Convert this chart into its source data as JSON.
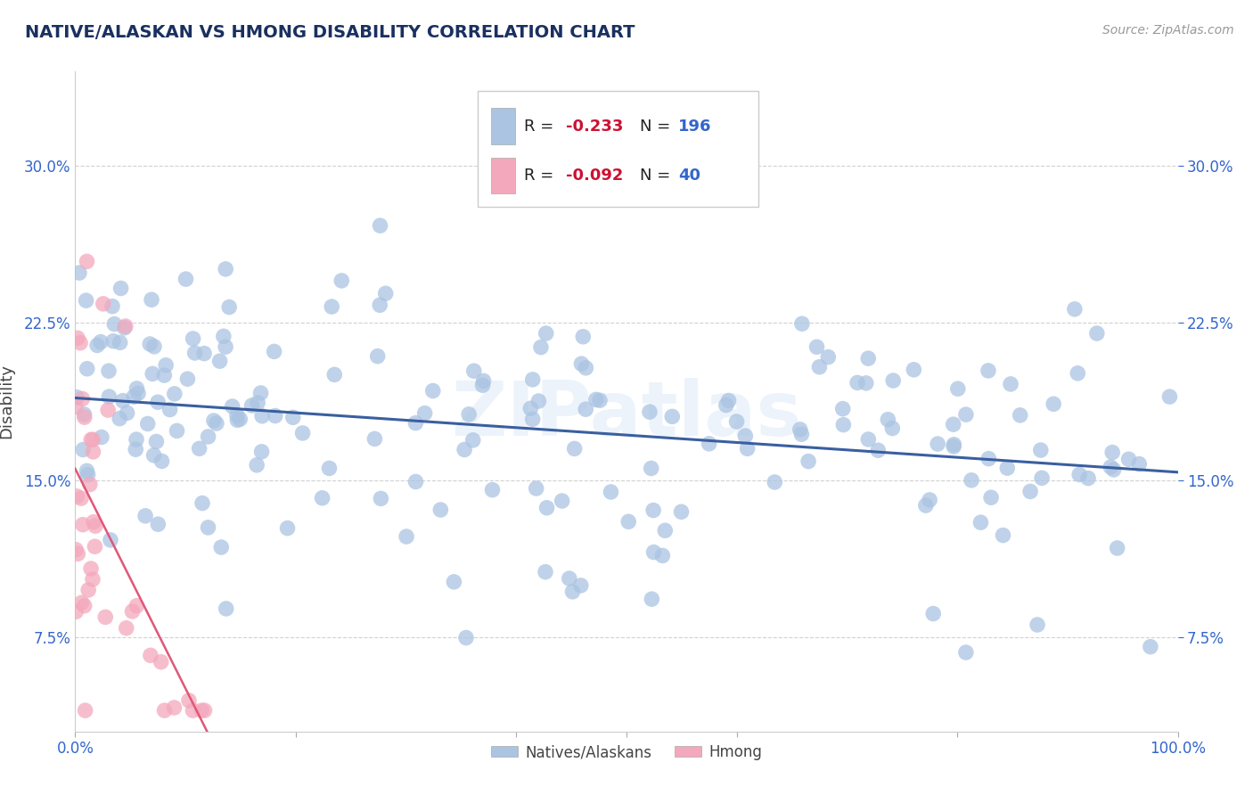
{
  "title": "NATIVE/ALASKAN VS HMONG DISABILITY CORRELATION CHART",
  "source": "Source: ZipAtlas.com",
  "ylabel": "Disability",
  "yticks": [
    "7.5%",
    "15.0%",
    "22.5%",
    "30.0%"
  ],
  "ytick_vals": [
    0.075,
    0.15,
    0.225,
    0.3
  ],
  "xlim": [
    0.0,
    1.0
  ],
  "ylim": [
    0.03,
    0.345
  ],
  "blue_R": -0.233,
  "blue_N": 196,
  "pink_R": -0.092,
  "pink_N": 40,
  "blue_color": "#aac4e2",
  "pink_color": "#f4a8bc",
  "blue_line_color": "#3a5fa0",
  "pink_line_color": "#e05878",
  "title_color": "#1a3060",
  "legend_R_color": "#cc1133",
  "legend_N_color": "#3366cc",
  "axis_tick_color": "#3366cc",
  "background_color": "#ffffff",
  "grid_color": "#cccccc",
  "watermark": "ZIPatlas",
  "legend_label1": "R = ",
  "legend_val1": "-0.233",
  "legend_n1": "N = ",
  "legend_nval1": "196",
  "legend_label2": "R = ",
  "legend_val2": "-0.092",
  "legend_n2": "N = ",
  "legend_nval2": "40",
  "bottom_legend1": "Natives/Alaskans",
  "bottom_legend2": "Hmong"
}
